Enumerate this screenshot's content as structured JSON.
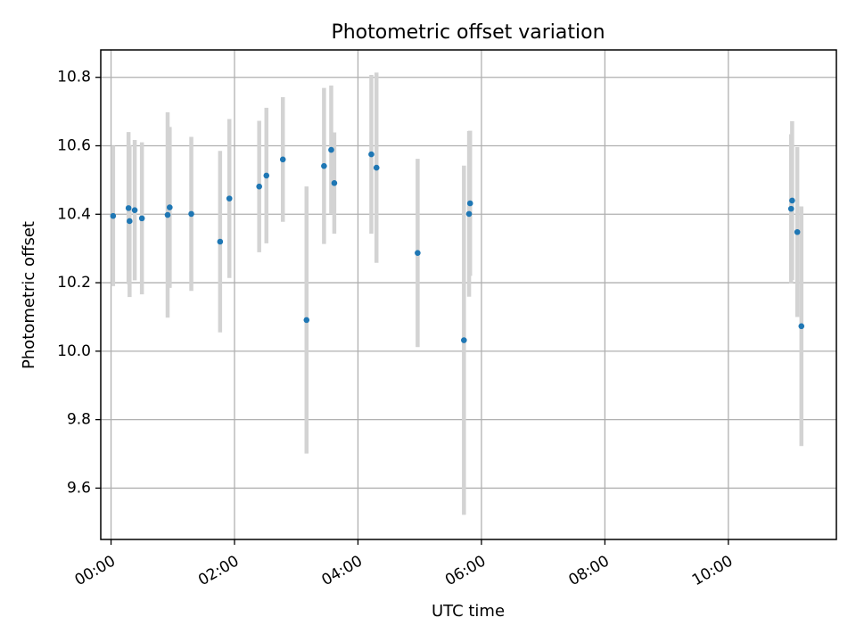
{
  "chart_data": {
    "type": "scatter",
    "title": "Photometric offset variation",
    "xlabel": "UTC time",
    "ylabel": "Photometric offset",
    "x_unit": "UTC time (HH:MM)",
    "xlim": [
      "-00:10",
      "11:45"
    ],
    "ylim": [
      9.45,
      10.88
    ],
    "x_ticks": [
      "00:00",
      "02:00",
      "04:00",
      "06:00",
      "08:00",
      "10:00"
    ],
    "y_ticks": [
      "9.6",
      "9.8",
      "10.0",
      "10.2",
      "10.4",
      "10.6",
      "10.8"
    ],
    "grid": true,
    "marker_color": "#1f77b4",
    "errorbar_color": "#d3d3d3",
    "points": [
      {
        "x": "00:02",
        "y": 10.395,
        "err": 0.205
      },
      {
        "x": "00:17",
        "y": 10.418,
        "err": 0.222
      },
      {
        "x": "00:18",
        "y": 10.38,
        "err": 0.222
      },
      {
        "x": "00:23",
        "y": 10.412,
        "err": 0.205
      },
      {
        "x": "00:30",
        "y": 10.388,
        "err": 0.222
      },
      {
        "x": "00:55",
        "y": 10.398,
        "err": 0.3
      },
      {
        "x": "00:57",
        "y": 10.42,
        "err": 0.235
      },
      {
        "x": "01:18",
        "y": 10.401,
        "err": 0.225
      },
      {
        "x": "01:46",
        "y": 10.32,
        "err": 0.265
      },
      {
        "x": "01:55",
        "y": 10.446,
        "err": 0.232
      },
      {
        "x": "02:24",
        "y": 10.481,
        "err": 0.192
      },
      {
        "x": "02:31",
        "y": 10.513,
        "err": 0.198
      },
      {
        "x": "02:47",
        "y": 10.56,
        "err": 0.182
      },
      {
        "x": "03:10",
        "y": 10.091,
        "err": 0.39
      },
      {
        "x": "03:27",
        "y": 10.541,
        "err": 0.228
      },
      {
        "x": "03:34",
        "y": 10.588,
        "err": 0.188
      },
      {
        "x": "03:37",
        "y": 10.491,
        "err": 0.148
      },
      {
        "x": "04:13",
        "y": 10.575,
        "err": 0.232
      },
      {
        "x": "04:18",
        "y": 10.536,
        "err": 0.278
      },
      {
        "x": "04:58",
        "y": 10.287,
        "err": 0.275
      },
      {
        "x": "05:43",
        "y": 10.032,
        "err": 0.51
      },
      {
        "x": "05:48",
        "y": 10.401,
        "err": 0.242
      },
      {
        "x": "05:49",
        "y": 10.432,
        "err": 0.212
      },
      {
        "x": "11:01",
        "y": 10.416,
        "err": 0.218
      },
      {
        "x": "11:02",
        "y": 10.44,
        "err": 0.232
      },
      {
        "x": "11:07",
        "y": 10.348,
        "err": 0.248
      },
      {
        "x": "11:11",
        "y": 10.073,
        "err": 0.35
      }
    ]
  }
}
